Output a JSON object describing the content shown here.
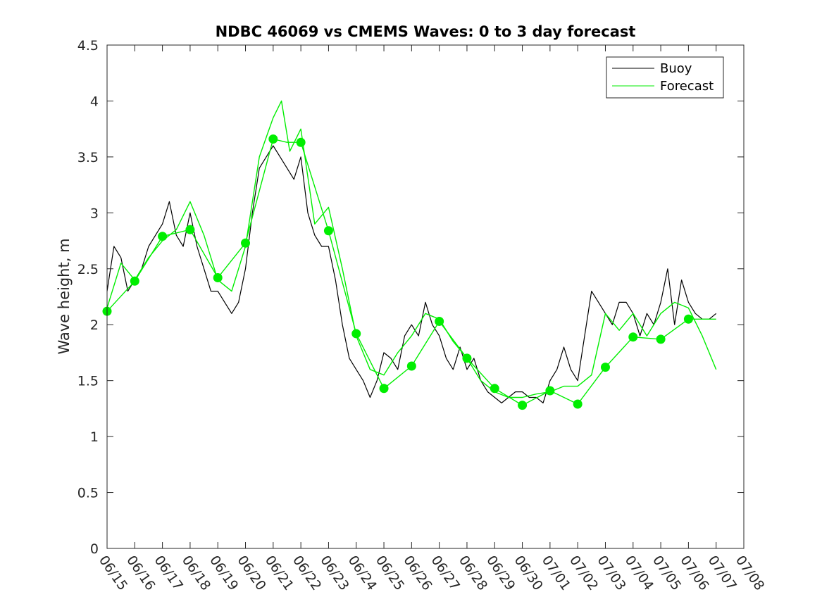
{
  "chart_data": {
    "type": "line",
    "title": "NDBC 46069 vs CMEMS Waves: 0 to 3 day forecast",
    "xlabel": "",
    "ylabel": "Wave height, m",
    "xlim": [
      "06/15",
      "07/08"
    ],
    "ylim": [
      0,
      4.5
    ],
    "y_ticks": [
      "0",
      "0.5",
      "1",
      "1.5",
      "2",
      "2.5",
      "3",
      "3.5",
      "4",
      "4.5"
    ],
    "x_ticks": [
      "06/15",
      "06/16",
      "06/17",
      "06/18",
      "06/19",
      "06/20",
      "06/21",
      "06/22",
      "06/23",
      "06/24",
      "06/25",
      "06/26",
      "06/27",
      "06/28",
      "06/29",
      "06/30",
      "07/01",
      "07/02",
      "07/03",
      "07/04",
      "07/05",
      "07/06",
      "07/07",
      "07/08"
    ],
    "grid": false,
    "legend": {
      "placement": "top-right",
      "entries": [
        {
          "label": "Buoy",
          "color": "#000000"
        },
        {
          "label": "Forecast",
          "color": "#00ee00"
        }
      ]
    },
    "series": [
      {
        "name": "Buoy",
        "color": "#000000",
        "x_days": [
          0,
          0.25,
          0.5,
          0.75,
          1,
          1.25,
          1.5,
          1.75,
          2,
          2.25,
          2.5,
          2.75,
          3,
          3.25,
          3.5,
          3.75,
          4,
          4.25,
          4.5,
          4.75,
          5,
          5.25,
          5.5,
          5.75,
          6,
          6.25,
          6.5,
          6.75,
          7,
          7.25,
          7.5,
          7.75,
          8,
          8.25,
          8.5,
          8.75,
          9,
          9.25,
          9.5,
          9.75,
          10,
          10.25,
          10.5,
          10.75,
          11,
          11.25,
          11.5,
          11.75,
          12,
          12.25,
          12.5,
          12.75,
          13,
          13.25,
          13.5,
          13.75,
          14,
          14.25,
          14.5,
          14.75,
          15,
          15.25,
          15.5,
          15.75,
          16,
          16.25,
          16.5,
          16.75,
          17,
          17.25,
          17.5,
          17.75,
          18,
          18.25,
          18.5,
          18.75,
          19,
          19.25,
          19.5,
          19.75,
          20,
          20.25,
          20.5,
          20.75,
          21,
          21.25,
          21.5,
          21.75,
          22
        ],
        "values": [
          2.3,
          2.7,
          2.6,
          2.3,
          2.4,
          2.5,
          2.7,
          2.8,
          2.9,
          3.1,
          2.8,
          2.7,
          3.0,
          2.7,
          2.5,
          2.3,
          2.3,
          2.2,
          2.1,
          2.2,
          2.5,
          3.0,
          3.4,
          3.5,
          3.6,
          3.5,
          3.4,
          3.3,
          3.5,
          3.0,
          2.8,
          2.7,
          2.7,
          2.4,
          2.0,
          1.7,
          1.6,
          1.5,
          1.35,
          1.5,
          1.75,
          1.7,
          1.6,
          1.9,
          2.0,
          1.9,
          2.2,
          2.0,
          1.9,
          1.7,
          1.6,
          1.8,
          1.6,
          1.7,
          1.5,
          1.4,
          1.35,
          1.3,
          1.35,
          1.4,
          1.4,
          1.35,
          1.35,
          1.3,
          1.5,
          1.6,
          1.8,
          1.6,
          1.5,
          1.9,
          2.3,
          2.2,
          2.1,
          2.0,
          2.2,
          2.2,
          2.1,
          1.9,
          2.1,
          2.0,
          2.2,
          2.5,
          2.0,
          2.4,
          2.2,
          2.1,
          2.05,
          2.05,
          2.1
        ]
      },
      {
        "name": "Forecast",
        "color": "#00ee00",
        "x_days": [
          0,
          0.5,
          1,
          1.5,
          2,
          2.5,
          3,
          3.5,
          4,
          4.5,
          5,
          5.5,
          6,
          6.3,
          6.6,
          7,
          7.5,
          8,
          8.5,
          9,
          9.5,
          10,
          10.5,
          11,
          11.5,
          12,
          12.5,
          13,
          13.5,
          14,
          14.5,
          15,
          15.5,
          16,
          16.5,
          17,
          17.5,
          18,
          18.5,
          19,
          19.5,
          20,
          20.5,
          21,
          21.5,
          22
        ],
        "values": [
          2.15,
          2.55,
          2.4,
          2.6,
          2.75,
          2.85,
          3.1,
          2.8,
          2.4,
          2.3,
          2.7,
          3.5,
          3.85,
          4.0,
          3.55,
          3.75,
          2.9,
          3.05,
          2.5,
          1.9,
          1.6,
          1.55,
          1.75,
          1.9,
          2.1,
          2.05,
          1.85,
          1.7,
          1.5,
          1.4,
          1.35,
          1.35,
          1.38,
          1.4,
          1.45,
          1.45,
          1.55,
          2.1,
          1.95,
          2.1,
          1.9,
          2.1,
          2.2,
          2.15,
          1.9,
          1.6
        ]
      },
      {
        "name": "Forecast",
        "color": "#00ee00",
        "x_days": [
          0,
          1,
          2,
          3,
          4,
          5,
          6,
          6.5,
          7,
          8,
          9,
          10,
          11,
          12,
          13,
          14,
          15,
          16,
          17,
          18,
          19,
          20,
          21,
          22
        ],
        "values": [
          2.12,
          2.39,
          2.79,
          2.85,
          2.42,
          2.73,
          3.66,
          3.63,
          3.63,
          2.84,
          1.92,
          1.43,
          1.63,
          2.03,
          1.7,
          1.43,
          1.28,
          1.41,
          1.29,
          1.62,
          1.89,
          1.87,
          2.05,
          2.05
        ]
      }
    ],
    "markers": {
      "color": "#00ee00",
      "x": [
        "06/15",
        "06/16",
        "06/17",
        "06/18",
        "06/19",
        "06/20",
        "06/21",
        "06/22",
        "06/23",
        "06/24",
        "06/25",
        "06/26",
        "06/27",
        "06/28",
        "06/29",
        "06/30",
        "07/01",
        "07/02",
        "07/03",
        "07/04",
        "07/05",
        "07/06"
      ],
      "values": [
        2.12,
        2.39,
        2.79,
        2.85,
        2.42,
        2.73,
        3.66,
        3.63,
        2.84,
        1.92,
        1.43,
        1.63,
        2.03,
        1.7,
        1.43,
        1.28,
        1.41,
        1.29,
        1.62,
        1.89,
        1.87,
        2.05
      ]
    }
  }
}
